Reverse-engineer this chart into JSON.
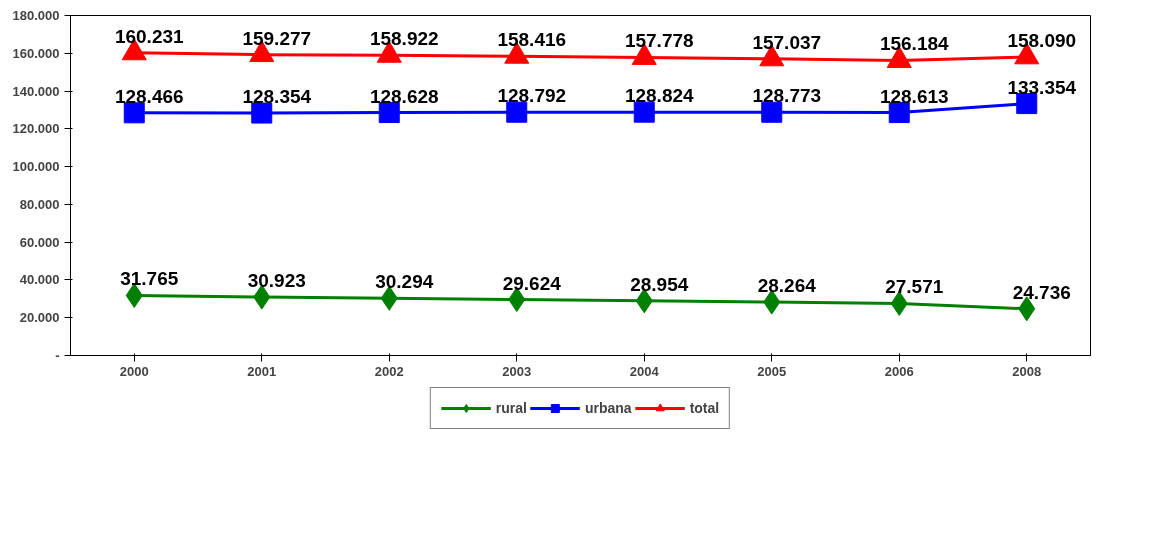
{
  "chart_data": {
    "type": "line",
    "categories": [
      "2000",
      "2001",
      "2002",
      "2003",
      "2004",
      "2005",
      "2006",
      "2008"
    ],
    "series": [
      {
        "name": "rural",
        "color": "#008000",
        "marker": "diamond",
        "values": [
          31765,
          30923,
          30294,
          29624,
          28954,
          28264,
          27571,
          24736
        ],
        "value_labels": [
          "31.765",
          "30.923",
          "30.294",
          "29.624",
          "28.954",
          "28.264",
          "27.571",
          "24.736"
        ]
      },
      {
        "name": "urbana",
        "color": "#0000ff",
        "marker": "square",
        "values": [
          128466,
          128354,
          128628,
          128792,
          128824,
          128773,
          128613,
          133354
        ],
        "value_labels": [
          "128.466",
          "128.354",
          "128.628",
          "128.792",
          "128.824",
          "128.773",
          "128.613",
          "133.354"
        ]
      },
      {
        "name": "total",
        "color": "#ff0000",
        "marker": "triangle",
        "values": [
          160231,
          159277,
          158922,
          158416,
          157778,
          157037,
          156184,
          158090
        ],
        "value_labels": [
          "160.231",
          "159.277",
          "158.922",
          "158.416",
          "157.778",
          "157.037",
          "156.184",
          "158.090"
        ]
      }
    ],
    "ylim": [
      0,
      180000
    ],
    "yticks": [
      {
        "value": 0,
        "label": "-"
      },
      {
        "value": 20000,
        "label": "20.000"
      },
      {
        "value": 40000,
        "label": "40.000"
      },
      {
        "value": 60000,
        "label": "60.000"
      },
      {
        "value": 80000,
        "label": "80.000"
      },
      {
        "value": 100000,
        "label": "100.000"
      },
      {
        "value": 120000,
        "label": "120.000"
      },
      {
        "value": 140000,
        "label": "140.000"
      },
      {
        "value": 160000,
        "label": "160.000"
      },
      {
        "value": 180000,
        "label": "180.000"
      }
    ],
    "grid": false,
    "legend": "bottom",
    "line_style": "solid"
  }
}
